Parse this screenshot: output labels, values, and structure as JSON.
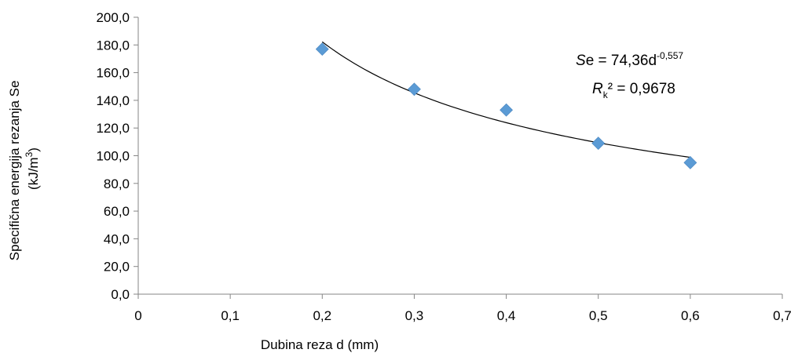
{
  "chart_data": {
    "type": "scatter",
    "x": [
      0.2,
      0.3,
      0.4,
      0.5,
      0.6
    ],
    "y": [
      177,
      148,
      133,
      109,
      95
    ],
    "marker_color": "#5b9bd5",
    "xlim": [
      0,
      0.7
    ],
    "ylim": [
      0,
      200
    ],
    "x_ticks": [
      "0",
      "0,1",
      "0,2",
      "0,3",
      "0,4",
      "0,5",
      "0,6",
      "0,7"
    ],
    "y_ticks": [
      "0,0",
      "20,0",
      "40,0",
      "60,0",
      "80,0",
      "100,0",
      "120,0",
      "140,0",
      "160,0",
      "180,0",
      "200,0"
    ],
    "xlabel": "Dubina reza d (mm)",
    "ylabel": {
      "line1": "Specifična energija rezanja Se",
      "line2_base": "(kJ/m",
      "line2_sup": "3",
      "line2_end": ")"
    },
    "trendline": {
      "type": "power",
      "coefficient": 74.36,
      "exponent": -0.557,
      "x_range": [
        0.2,
        0.6
      ],
      "color": "#000000",
      "equation": {
        "italic": "S",
        "base": "e = 74,36d",
        "sup": "-0,557"
      },
      "r_squared": {
        "italic": "R",
        "sub": "k",
        "rest": "² = 0,9678"
      }
    },
    "grid": false
  }
}
